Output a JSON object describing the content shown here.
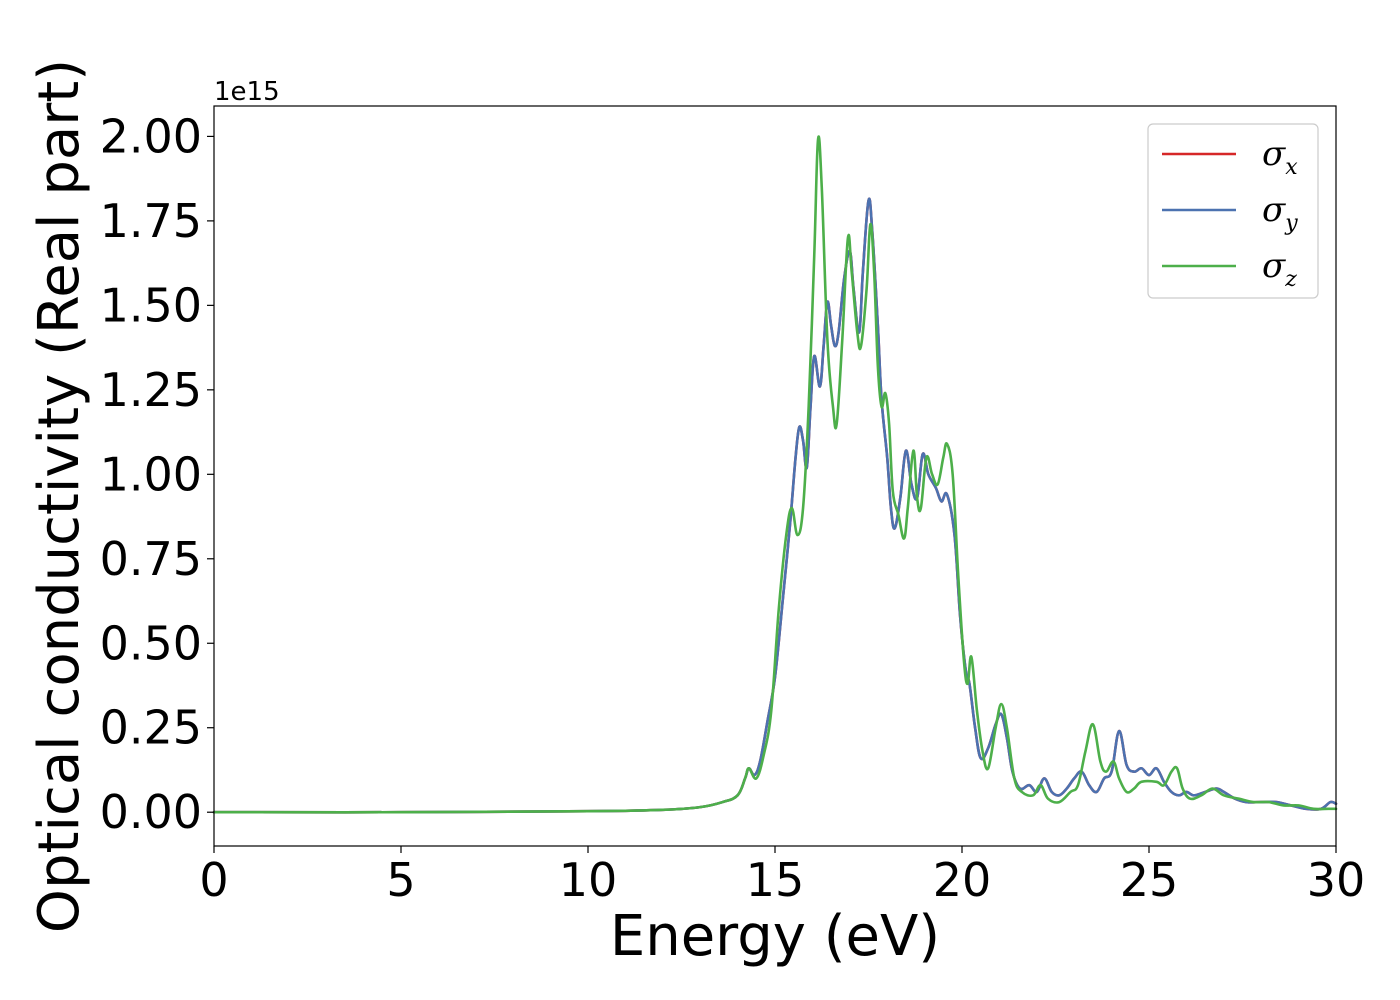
{
  "chart_data": {
    "type": "line",
    "xlabel": "Energy (eV)",
    "ylabel": "Optical conductivity (Real part)",
    "y_offset_text": "1e15",
    "y_scale": 1000000000000000.0,
    "xlim": [
      0,
      30
    ],
    "ylim": [
      -0.1,
      2.09
    ],
    "x_ticks": [
      0,
      5,
      10,
      15,
      20,
      25,
      30
    ],
    "x_tick_labels": [
      "0",
      "5",
      "10",
      "15",
      "20",
      "25",
      "30"
    ],
    "y_ticks": [
      0,
      0.25,
      0.5,
      0.75,
      1.0,
      1.25,
      1.5,
      1.75,
      2.0
    ],
    "y_tick_labels": [
      "0.00",
      "0.25",
      "0.50",
      "0.75",
      "1.00",
      "1.25",
      "1.50",
      "1.75",
      "2.00"
    ],
    "grid": false,
    "legend_position": "top-right",
    "series": [
      {
        "name": "σx",
        "symbol": "σ",
        "subscript": "x",
        "color": "#d62728",
        "points": [
          [
            0,
            0
          ],
          [
            5,
            0
          ],
          [
            10,
            0.003
          ],
          [
            12,
            0.007
          ],
          [
            13,
            0.015
          ],
          [
            13.6,
            0.03
          ],
          [
            14,
            0.05
          ],
          [
            14.2,
            0.1
          ],
          [
            14.3,
            0.13
          ],
          [
            14.45,
            0.11
          ],
          [
            14.6,
            0.15
          ],
          [
            14.8,
            0.27
          ],
          [
            15,
            0.4
          ],
          [
            15.2,
            0.62
          ],
          [
            15.4,
            0.85
          ],
          [
            15.55,
            1.05
          ],
          [
            15.65,
            1.14
          ],
          [
            15.75,
            1.1
          ],
          [
            15.85,
            1.02
          ],
          [
            15.95,
            1.2
          ],
          [
            16.05,
            1.35
          ],
          [
            16.2,
            1.26
          ],
          [
            16.3,
            1.38
          ],
          [
            16.4,
            1.51
          ],
          [
            16.5,
            1.44
          ],
          [
            16.6,
            1.38
          ],
          [
            16.7,
            1.42
          ],
          [
            16.85,
            1.58
          ],
          [
            17,
            1.66
          ],
          [
            17.1,
            1.55
          ],
          [
            17.25,
            1.42
          ],
          [
            17.35,
            1.6
          ],
          [
            17.5,
            1.81
          ],
          [
            17.6,
            1.72
          ],
          [
            17.75,
            1.44
          ],
          [
            17.85,
            1.22
          ],
          [
            18,
            1.05
          ],
          [
            18.1,
            0.9
          ],
          [
            18.2,
            0.84
          ],
          [
            18.35,
            0.93
          ],
          [
            18.5,
            1.07
          ],
          [
            18.65,
            0.97
          ],
          [
            18.8,
            0.93
          ],
          [
            18.95,
            1.06
          ],
          [
            19.1,
            1.0
          ],
          [
            19.3,
            0.96
          ],
          [
            19.45,
            0.92
          ],
          [
            19.6,
            0.94
          ],
          [
            19.8,
            0.82
          ],
          [
            19.95,
            0.58
          ],
          [
            20.1,
            0.42
          ],
          [
            20.2,
            0.38
          ],
          [
            20.35,
            0.25
          ],
          [
            20.5,
            0.16
          ],
          [
            20.7,
            0.19
          ],
          [
            20.9,
            0.26
          ],
          [
            21.05,
            0.29
          ],
          [
            21.2,
            0.22
          ],
          [
            21.35,
            0.12
          ],
          [
            21.55,
            0.07
          ],
          [
            21.8,
            0.08
          ],
          [
            22.0,
            0.06
          ],
          [
            22.2,
            0.1
          ],
          [
            22.4,
            0.06
          ],
          [
            22.6,
            0.05
          ],
          [
            22.8,
            0.07
          ],
          [
            23.0,
            0.1
          ],
          [
            23.2,
            0.12
          ],
          [
            23.4,
            0.08
          ],
          [
            23.6,
            0.06
          ],
          [
            23.8,
            0.1
          ],
          [
            24.0,
            0.12
          ],
          [
            24.2,
            0.24
          ],
          [
            24.4,
            0.14
          ],
          [
            24.6,
            0.12
          ],
          [
            24.8,
            0.13
          ],
          [
            25.0,
            0.11
          ],
          [
            25.2,
            0.13
          ],
          [
            25.4,
            0.09
          ],
          [
            25.6,
            0.06
          ],
          [
            25.8,
            0.05
          ],
          [
            26.0,
            0.06
          ],
          [
            26.2,
            0.05
          ],
          [
            26.5,
            0.06
          ],
          [
            26.8,
            0.07
          ],
          [
            27.0,
            0.06
          ],
          [
            27.3,
            0.04
          ],
          [
            27.6,
            0.03
          ],
          [
            28.0,
            0.03
          ],
          [
            28.4,
            0.03
          ],
          [
            28.8,
            0.02
          ],
          [
            29.2,
            0.01
          ],
          [
            29.6,
            0.01
          ],
          [
            29.85,
            0.03
          ],
          [
            30,
            0.025
          ]
        ]
      },
      {
        "name": "σy",
        "symbol": "σ",
        "subscript": "y",
        "color": "#4c72b0",
        "points": [
          [
            0,
            0
          ],
          [
            5,
            0
          ],
          [
            10,
            0.003
          ],
          [
            12,
            0.007
          ],
          [
            13,
            0.015
          ],
          [
            13.6,
            0.03
          ],
          [
            14,
            0.05
          ],
          [
            14.2,
            0.1
          ],
          [
            14.3,
            0.13
          ],
          [
            14.45,
            0.11
          ],
          [
            14.6,
            0.15
          ],
          [
            14.8,
            0.27
          ],
          [
            15,
            0.4
          ],
          [
            15.2,
            0.62
          ],
          [
            15.4,
            0.85
          ],
          [
            15.55,
            1.05
          ],
          [
            15.65,
            1.14
          ],
          [
            15.75,
            1.1
          ],
          [
            15.85,
            1.02
          ],
          [
            15.95,
            1.2
          ],
          [
            16.05,
            1.35
          ],
          [
            16.2,
            1.26
          ],
          [
            16.3,
            1.38
          ],
          [
            16.4,
            1.51
          ],
          [
            16.5,
            1.44
          ],
          [
            16.6,
            1.38
          ],
          [
            16.7,
            1.42
          ],
          [
            16.85,
            1.58
          ],
          [
            17,
            1.66
          ],
          [
            17.1,
            1.55
          ],
          [
            17.25,
            1.42
          ],
          [
            17.35,
            1.6
          ],
          [
            17.5,
            1.81
          ],
          [
            17.6,
            1.72
          ],
          [
            17.75,
            1.44
          ],
          [
            17.85,
            1.22
          ],
          [
            18,
            1.05
          ],
          [
            18.1,
            0.9
          ],
          [
            18.2,
            0.84
          ],
          [
            18.35,
            0.93
          ],
          [
            18.5,
            1.07
          ],
          [
            18.65,
            0.97
          ],
          [
            18.8,
            0.93
          ],
          [
            18.95,
            1.06
          ],
          [
            19.1,
            1.0
          ],
          [
            19.3,
            0.96
          ],
          [
            19.45,
            0.92
          ],
          [
            19.6,
            0.94
          ],
          [
            19.8,
            0.82
          ],
          [
            19.95,
            0.58
          ],
          [
            20.1,
            0.42
          ],
          [
            20.2,
            0.38
          ],
          [
            20.35,
            0.25
          ],
          [
            20.5,
            0.16
          ],
          [
            20.7,
            0.19
          ],
          [
            20.9,
            0.26
          ],
          [
            21.05,
            0.29
          ],
          [
            21.2,
            0.22
          ],
          [
            21.35,
            0.12
          ],
          [
            21.55,
            0.07
          ],
          [
            21.8,
            0.08
          ],
          [
            22.0,
            0.06
          ],
          [
            22.2,
            0.1
          ],
          [
            22.4,
            0.06
          ],
          [
            22.6,
            0.05
          ],
          [
            22.8,
            0.07
          ],
          [
            23.0,
            0.1
          ],
          [
            23.2,
            0.12
          ],
          [
            23.4,
            0.08
          ],
          [
            23.6,
            0.06
          ],
          [
            23.8,
            0.1
          ],
          [
            24.0,
            0.12
          ],
          [
            24.2,
            0.24
          ],
          [
            24.4,
            0.14
          ],
          [
            24.6,
            0.12
          ],
          [
            24.8,
            0.13
          ],
          [
            25.0,
            0.11
          ],
          [
            25.2,
            0.13
          ],
          [
            25.4,
            0.09
          ],
          [
            25.6,
            0.06
          ],
          [
            25.8,
            0.05
          ],
          [
            26.0,
            0.06
          ],
          [
            26.2,
            0.05
          ],
          [
            26.5,
            0.06
          ],
          [
            26.8,
            0.07
          ],
          [
            27.0,
            0.06
          ],
          [
            27.3,
            0.04
          ],
          [
            27.6,
            0.03
          ],
          [
            28.0,
            0.03
          ],
          [
            28.4,
            0.03
          ],
          [
            28.8,
            0.02
          ],
          [
            29.2,
            0.01
          ],
          [
            29.6,
            0.01
          ],
          [
            29.85,
            0.03
          ],
          [
            30,
            0.025
          ]
        ]
      },
      {
        "name": "σz",
        "symbol": "σ",
        "subscript": "z",
        "color": "#4daf4a",
        "points": [
          [
            0,
            0
          ],
          [
            5,
            0
          ],
          [
            10,
            0.003
          ],
          [
            12,
            0.007
          ],
          [
            13,
            0.015
          ],
          [
            13.6,
            0.03
          ],
          [
            14,
            0.05
          ],
          [
            14.2,
            0.1
          ],
          [
            14.3,
            0.13
          ],
          [
            14.5,
            0.1
          ],
          [
            14.7,
            0.17
          ],
          [
            14.9,
            0.3
          ],
          [
            15.1,
            0.6
          ],
          [
            15.3,
            0.82
          ],
          [
            15.45,
            0.9
          ],
          [
            15.6,
            0.82
          ],
          [
            15.75,
            0.9
          ],
          [
            15.9,
            1.2
          ],
          [
            16.05,
            1.65
          ],
          [
            16.15,
            1.99
          ],
          [
            16.25,
            1.85
          ],
          [
            16.4,
            1.4
          ],
          [
            16.55,
            1.2
          ],
          [
            16.65,
            1.15
          ],
          [
            16.8,
            1.4
          ],
          [
            16.95,
            1.7
          ],
          [
            17.05,
            1.6
          ],
          [
            17.2,
            1.42
          ],
          [
            17.3,
            1.38
          ],
          [
            17.45,
            1.55
          ],
          [
            17.55,
            1.74
          ],
          [
            17.65,
            1.6
          ],
          [
            17.75,
            1.32
          ],
          [
            17.85,
            1.2
          ],
          [
            17.95,
            1.24
          ],
          [
            18.05,
            1.15
          ],
          [
            18.15,
            0.95
          ],
          [
            18.3,
            0.88
          ],
          [
            18.45,
            0.81
          ],
          [
            18.55,
            0.9
          ],
          [
            18.7,
            1.07
          ],
          [
            18.8,
            0.93
          ],
          [
            18.9,
            0.9
          ],
          [
            19.05,
            1.05
          ],
          [
            19.2,
            1.0
          ],
          [
            19.35,
            0.97
          ],
          [
            19.5,
            1.05
          ],
          [
            19.6,
            1.09
          ],
          [
            19.75,
            1.0
          ],
          [
            19.9,
            0.7
          ],
          [
            20.05,
            0.45
          ],
          [
            20.15,
            0.38
          ],
          [
            20.25,
            0.46
          ],
          [
            20.4,
            0.3
          ],
          [
            20.55,
            0.18
          ],
          [
            20.7,
            0.13
          ],
          [
            20.9,
            0.25
          ],
          [
            21.05,
            0.32
          ],
          [
            21.2,
            0.25
          ],
          [
            21.4,
            0.1
          ],
          [
            21.6,
            0.06
          ],
          [
            21.9,
            0.05
          ],
          [
            22.1,
            0.08
          ],
          [
            22.3,
            0.04
          ],
          [
            22.6,
            0.03
          ],
          [
            22.9,
            0.06
          ],
          [
            23.1,
            0.08
          ],
          [
            23.3,
            0.18
          ],
          [
            23.5,
            0.26
          ],
          [
            23.7,
            0.15
          ],
          [
            23.85,
            0.12
          ],
          [
            24.05,
            0.15
          ],
          [
            24.2,
            0.1
          ],
          [
            24.4,
            0.06
          ],
          [
            24.6,
            0.07
          ],
          [
            24.8,
            0.09
          ],
          [
            25.2,
            0.09
          ],
          [
            25.4,
            0.08
          ],
          [
            25.6,
            0.12
          ],
          [
            25.75,
            0.13
          ],
          [
            25.9,
            0.07
          ],
          [
            26.1,
            0.04
          ],
          [
            26.4,
            0.05
          ],
          [
            26.7,
            0.07
          ],
          [
            27.0,
            0.05
          ],
          [
            27.4,
            0.04
          ],
          [
            27.8,
            0.03
          ],
          [
            28.2,
            0.03
          ],
          [
            28.6,
            0.02
          ],
          [
            29.0,
            0.02
          ],
          [
            29.4,
            0.01
          ],
          [
            29.8,
            0.01
          ],
          [
            30,
            0.01
          ]
        ]
      }
    ]
  }
}
